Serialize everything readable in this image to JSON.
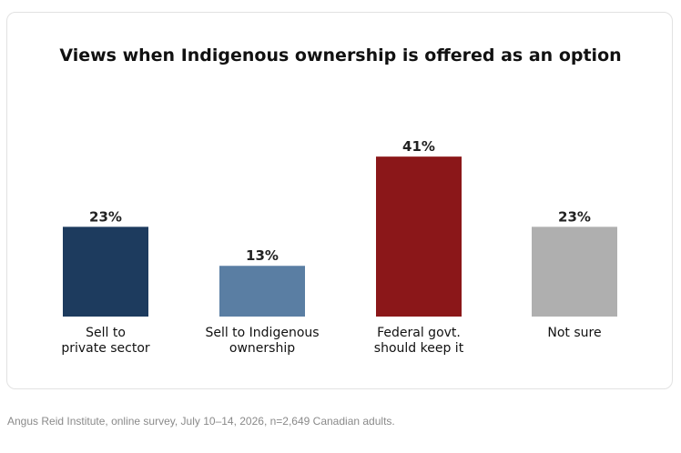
{
  "chart_data": {
    "type": "bar",
    "title": "Views when Indigenous ownership is offered as an option",
    "categories": [
      [
        "Sell to",
        "private sector"
      ],
      [
        "Sell to Indigenous",
        "ownership"
      ],
      [
        "Federal govt.",
        "should keep it"
      ],
      [
        "Not sure"
      ]
    ],
    "values": [
      23,
      13,
      41,
      23
    ],
    "value_labels": [
      "23%",
      "13%",
      "41%",
      "23%"
    ],
    "colors": [
      "#1d3b5e",
      "#5a7ea3",
      "#8b1719",
      "#afafaf"
    ],
    "ylim": [
      0,
      45
    ],
    "grid": false,
    "legend": "none",
    "xlabel": "",
    "ylabel": ""
  },
  "footer": {
    "source": "Angus Reid Institute, online survey, July 10–14, 2026, n=2,649 Canadian adults."
  }
}
